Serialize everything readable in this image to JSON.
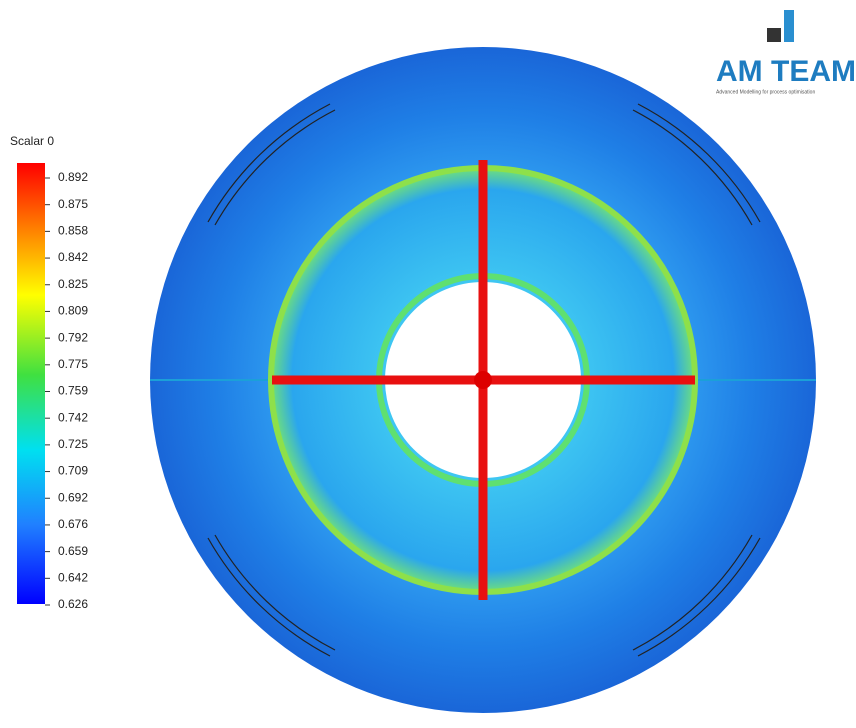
{
  "legend": {
    "title": "Scalar 0",
    "ticks": [
      0.892,
      0.875,
      0.858,
      0.842,
      0.825,
      0.809,
      0.792,
      0.775,
      0.759,
      0.742,
      0.725,
      0.709,
      0.692,
      0.676,
      0.659,
      0.642,
      0.626
    ]
  },
  "logo": {
    "title": "AM TEAM",
    "tagline": "Advanced Modelling for process optimisation"
  }
}
